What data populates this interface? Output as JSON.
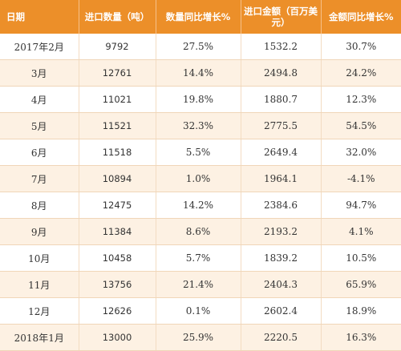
{
  "table": {
    "headers": [
      "日期",
      "进口数量（吨）",
      "数量同比增长%",
      "进口金额（百万美元）",
      "金额同比增长%"
    ],
    "rows": [
      [
        "2017年2月",
        "9792",
        "27.5%",
        "1532.2",
        "30.7%"
      ],
      [
        "3月",
        "12761",
        "14.4%",
        "2494.8",
        "24.2%"
      ],
      [
        "4月",
        "11021",
        "19.8%",
        "1880.7",
        "12.3%"
      ],
      [
        "5月",
        "11521",
        "32.3%",
        "2775.5",
        "54.5%"
      ],
      [
        "6月",
        "11518",
        "5.5%",
        "2649.4",
        "32.0%"
      ],
      [
        "7月",
        "10894",
        "1.0%",
        "1964.1",
        "-4.1%"
      ],
      [
        "8月",
        "12475",
        "14.2%",
        "2384.6",
        "94.7%"
      ],
      [
        "9月",
        "11384",
        "8.6%",
        "2193.2",
        "4.1%"
      ],
      [
        "10月",
        "10458",
        "5.7%",
        "1839.2",
        "10.5%"
      ],
      [
        "11月",
        "13756",
        "21.4%",
        "2404.3",
        "65.9%"
      ],
      [
        "12月",
        "12626",
        "0.1%",
        "2602.4",
        "18.9%"
      ],
      [
        "2018年1月",
        "13000",
        "25.9%",
        "2220.5",
        "16.3%"
      ]
    ]
  },
  "colors": {
    "header_bg": "#ec8f29",
    "header_text": "#ffffff",
    "row_alt_bg": "#fdf1e3"
  }
}
